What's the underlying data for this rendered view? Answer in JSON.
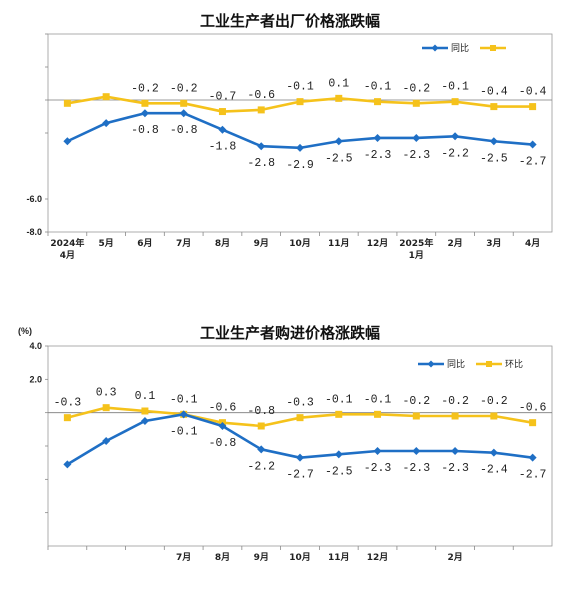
{
  "chart_data": [
    {
      "type": "line",
      "title": "工业生产者出厂价格涨跌幅",
      "unit_label": "",
      "yticks": [
        "",
        "",
        "",
        "",
        "-6.0",
        "-8.0"
      ],
      "ytick_values": [
        4,
        2,
        0,
        -2,
        -6,
        -8
      ],
      "ylim": [
        -8,
        4
      ],
      "categories": [
        "2024年\n4月",
        "5月",
        "6月",
        "7月",
        "8月",
        "9月",
        "10月",
        "11月",
        "12月",
        "2025年\n1月",
        "2月",
        "3月",
        "4月"
      ],
      "grid": false,
      "legend_position": "top-right",
      "series": [
        {
          "name": "同比",
          "color": "#1f6fc5",
          "values": [
            -2.5,
            -1.4,
            -0.8,
            -0.8,
            -1.8,
            -2.8,
            -2.9,
            -2.5,
            -2.3,
            -2.3,
            -2.2,
            -2.5,
            -2.7
          ],
          "labels": [
            "",
            "",
            "-0.8",
            "-0.8",
            "-1.8",
            "-2.8",
            "-2.9",
            "-2.5",
            "-2.3",
            "-2.3",
            "-2.2",
            "-2.5",
            "-2.7"
          ]
        },
        {
          "name": "",
          "color": "#f5c21b",
          "values": [
            -0.2,
            0.2,
            -0.2,
            -0.2,
            -0.7,
            -0.6,
            -0.1,
            0.1,
            -0.1,
            -0.2,
            -0.1,
            -0.4,
            -0.4
          ],
          "labels": [
            "",
            "",
            "-0.2",
            "-0.2",
            "-0.7",
            "-0.6",
            "-0.1",
            "0.1",
            "-0.1",
            "-0.2",
            "-0.1",
            "-0.4",
            "-0.4"
          ]
        }
      ]
    },
    {
      "type": "line",
      "title": "工业生产者购进价格涨跌幅",
      "unit_label": "(%)",
      "yticks": [
        "4.0",
        "2.0",
        "",
        "",
        "",
        ""
      ],
      "ytick_values": [
        4,
        2,
        0,
        -2,
        -4,
        -6
      ],
      "ylim": [
        -8,
        4
      ],
      "categories": [
        "",
        "",
        "",
        "7月",
        "8月",
        "9月",
        "10月",
        "11月",
        "12月",
        "",
        "2月",
        "",
        ""
      ],
      "grid": false,
      "legend_position": "top-right",
      "series": [
        {
          "name": "同比",
          "color": "#1f6fc5",
          "values": [
            -3.1,
            -1.7,
            -0.5,
            -0.1,
            -0.8,
            -2.2,
            -2.7,
            -2.5,
            -2.3,
            -2.3,
            -2.3,
            -2.4,
            -2.7
          ],
          "labels": [
            "",
            "",
            "",
            "-0.1",
            "-0.8",
            "-2.2",
            "-2.7",
            "-2.5",
            "-2.3",
            "-2.3",
            "-2.3",
            "-2.4",
            "-2.7"
          ]
        },
        {
          "name": "环比",
          "color": "#f5c21b",
          "values": [
            -0.3,
            0.3,
            0.1,
            -0.1,
            -0.6,
            -0.8,
            -0.3,
            -0.1,
            -0.1,
            -0.2,
            -0.2,
            -0.2,
            -0.6
          ],
          "labels": [
            "-0.3",
            "0.3",
            "0.1",
            "-0.1",
            "-0.6",
            "-0.8",
            "-0.3",
            "-0.1",
            "-0.1",
            "-0.2",
            "-0.2",
            "-0.2",
            "-0.6"
          ]
        }
      ]
    }
  ]
}
